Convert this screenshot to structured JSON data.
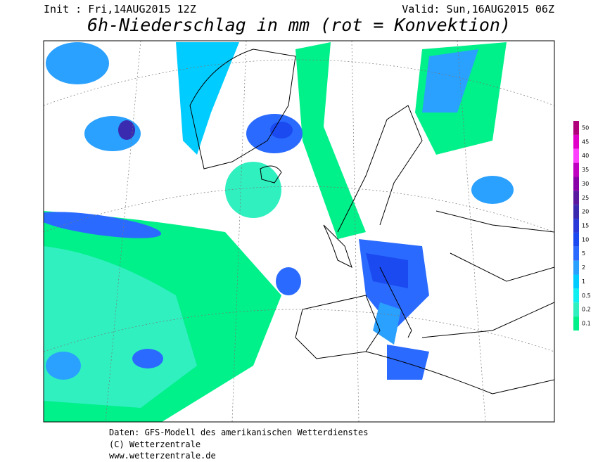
{
  "header": {
    "init": "Init : Fri,14AUG2015 12Z",
    "valid": "Valid: Sun,16AUG2015 06Z",
    "title": "6h-Niederschlag in mm (rot = Konvektion)"
  },
  "legend": [
    {
      "label": "50",
      "color": "#b0007a"
    },
    {
      "label": "45",
      "color": "#e000c8"
    },
    {
      "label": "40",
      "color": "#ff40ff"
    },
    {
      "label": "35",
      "color": "#c000c0"
    },
    {
      "label": "30",
      "color": "#8a00a8"
    },
    {
      "label": "25",
      "color": "#5a1aa0"
    },
    {
      "label": "20",
      "color": "#3a2ab0"
    },
    {
      "label": "15",
      "color": "#2a3ad8"
    },
    {
      "label": "10",
      "color": "#1a4af0"
    },
    {
      "label": "5",
      "color": "#2a6aff"
    },
    {
      "label": "2",
      "color": "#2aa0ff"
    },
    {
      "label": "1",
      "color": "#00ccff"
    },
    {
      "label": "0.5",
      "color": "#10f0f0"
    },
    {
      "label": "0.2",
      "color": "#30f0c0"
    },
    {
      "label": "0.1",
      "color": "#00f08a"
    }
  ],
  "footer": {
    "source": "Daten: GFS-Modell des amerikanischen Wetterdienstes",
    "copyright": "(C) Wetterzentrale",
    "url": "www.wetterzentrale.de"
  }
}
